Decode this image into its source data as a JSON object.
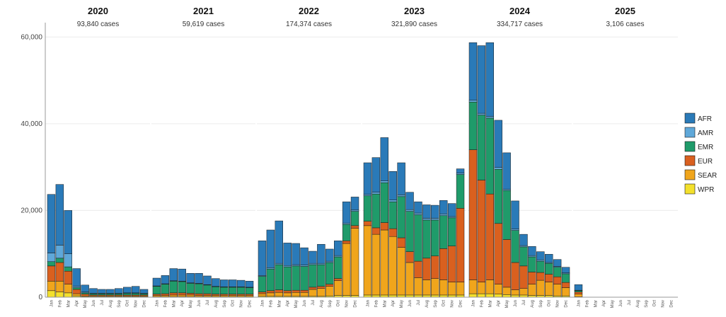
{
  "chart_data": {
    "type": "bar",
    "stacked": true,
    "ylim": [
      0,
      62000
    ],
    "yticks": [
      0,
      20000,
      40000,
      60000
    ],
    "ytick_labels": [
      "0",
      "20,000",
      "40,000",
      "60,000"
    ],
    "grid": true,
    "legend_position": "right",
    "series_colors": {
      "AFR": "#2a7ab8",
      "AMR": "#5fa8d9",
      "EMR": "#1f9b6a",
      "EUR": "#d9601f",
      "SEAR": "#f0a51c",
      "WPR": "#f3e02c"
    },
    "series_order": [
      "WPR",
      "SEAR",
      "EUR",
      "EMR",
      "AMR",
      "AFR"
    ],
    "legend": [
      "AFR",
      "AMR",
      "EMR",
      "EUR",
      "SEAR",
      "WPR"
    ],
    "years": [
      {
        "year": "2020",
        "label": "93,840 cases",
        "months": [
          "Jan",
          "Feb",
          "Mar",
          "Apr",
          "May",
          "Jun",
          "Jul",
          "Aug",
          "Sep",
          "Oct",
          "Nov",
          "Dec"
        ],
        "bars": [
          {
            "WPR": 1500,
            "SEAR": 2200,
            "EUR": 3500,
            "EMR": 1000,
            "AMR": 2000,
            "AFR": 13500
          },
          {
            "WPR": 1200,
            "SEAR": 2500,
            "EUR": 4300,
            "EMR": 1000,
            "AMR": 3000,
            "AFR": 14000
          },
          {
            "WPR": 1000,
            "SEAR": 2000,
            "EUR": 3000,
            "EMR": 1000,
            "AMR": 3000,
            "AFR": 10000
          },
          {
            "WPR": 300,
            "SEAR": 500,
            "EUR": 1000,
            "EMR": 400,
            "AMR": 300,
            "AFR": 4100
          },
          {
            "WPR": 100,
            "SEAR": 200,
            "EUR": 400,
            "EMR": 300,
            "AMR": 200,
            "AFR": 1600
          },
          {
            "WPR": 100,
            "SEAR": 200,
            "EUR": 200,
            "EMR": 300,
            "AMR": 100,
            "AFR": 1100
          },
          {
            "WPR": 100,
            "SEAR": 200,
            "EUR": 200,
            "EMR": 300,
            "AMR": 100,
            "AFR": 900
          },
          {
            "WPR": 100,
            "SEAR": 200,
            "EUR": 200,
            "EMR": 300,
            "AMR": 100,
            "AFR": 900
          },
          {
            "WPR": 100,
            "SEAR": 200,
            "EUR": 200,
            "EMR": 300,
            "AMR": 100,
            "AFR": 1100
          },
          {
            "WPR": 100,
            "SEAR": 200,
            "EUR": 200,
            "EMR": 400,
            "AMR": 100,
            "AFR": 1300
          },
          {
            "WPR": 100,
            "SEAR": 200,
            "EUR": 200,
            "EMR": 400,
            "AMR": 100,
            "AFR": 1500
          },
          {
            "WPR": 100,
            "SEAR": 200,
            "EUR": 200,
            "EMR": 300,
            "AMR": 100,
            "AFR": 900
          }
        ]
      },
      {
        "year": "2021",
        "label": "59,619 cases",
        "months": [
          "Jan",
          "Feb",
          "Mar",
          "Apr",
          "May",
          "Jun",
          "Jul",
          "Aug",
          "Sep",
          "Oct",
          "Nov",
          "Dec"
        ],
        "bars": [
          {
            "WPR": 100,
            "SEAR": 300,
            "EUR": 300,
            "EMR": 1800,
            "AMR": 100,
            "AFR": 1800
          },
          {
            "WPR": 100,
            "SEAR": 300,
            "EUR": 400,
            "EMR": 2200,
            "AMR": 100,
            "AFR": 1900
          },
          {
            "WPR": 100,
            "SEAR": 400,
            "EUR": 500,
            "EMR": 2700,
            "AMR": 100,
            "AFR": 2800
          },
          {
            "WPR": 100,
            "SEAR": 400,
            "EUR": 500,
            "EMR": 2600,
            "AMR": 100,
            "AFR": 2800
          },
          {
            "WPR": 100,
            "SEAR": 400,
            "EUR": 400,
            "EMR": 2300,
            "AMR": 100,
            "AFR": 2200
          },
          {
            "WPR": 100,
            "SEAR": 300,
            "EUR": 400,
            "EMR": 2300,
            "AMR": 100,
            "AFR": 2300
          },
          {
            "WPR": 100,
            "SEAR": 300,
            "EUR": 400,
            "EMR": 2000,
            "AMR": 100,
            "AFR": 2000
          },
          {
            "WPR": 100,
            "SEAR": 300,
            "EUR": 300,
            "EMR": 1700,
            "AMR": 100,
            "AFR": 1800
          },
          {
            "WPR": 100,
            "SEAR": 300,
            "EUR": 300,
            "EMR": 1600,
            "AMR": 100,
            "AFR": 1600
          },
          {
            "WPR": 100,
            "SEAR": 300,
            "EUR": 300,
            "EMR": 1600,
            "AMR": 100,
            "AFR": 1600
          },
          {
            "WPR": 100,
            "SEAR": 300,
            "EUR": 300,
            "EMR": 1600,
            "AMR": 100,
            "AFR": 1500
          },
          {
            "WPR": 100,
            "SEAR": 300,
            "EUR": 300,
            "EMR": 1500,
            "AMR": 100,
            "AFR": 1400
          }
        ]
      },
      {
        "year": "2022",
        "label": "174,374 cases",
        "months": [
          "Jan",
          "Feb",
          "Mar",
          "Apr",
          "May",
          "Jun",
          "Jul",
          "Aug",
          "Sep",
          "Oct",
          "Nov",
          "Dec"
        ],
        "bars": [
          {
            "WPR": 200,
            "SEAR": 600,
            "EUR": 400,
            "EMR": 3600,
            "AMR": 200,
            "AFR": 8000
          },
          {
            "WPR": 200,
            "SEAR": 800,
            "EUR": 500,
            "EMR": 5000,
            "AMR": 300,
            "AFR": 8700
          },
          {
            "WPR": 200,
            "SEAR": 900,
            "EUR": 600,
            "EMR": 5800,
            "AMR": 300,
            "AFR": 9800
          },
          {
            "WPR": 200,
            "SEAR": 800,
            "EUR": 500,
            "EMR": 5500,
            "AMR": 300,
            "AFR": 5200
          },
          {
            "WPR": 200,
            "SEAR": 900,
            "EUR": 500,
            "EMR": 5600,
            "AMR": 300,
            "AFR": 4900
          },
          {
            "WPR": 200,
            "SEAR": 900,
            "EUR": 500,
            "EMR": 5500,
            "AMR": 300,
            "AFR": 4000
          },
          {
            "WPR": 200,
            "SEAR": 1600,
            "EUR": 500,
            "EMR": 5200,
            "AMR": 300,
            "AFR": 2800
          },
          {
            "WPR": 200,
            "SEAR": 1800,
            "EUR": 500,
            "EMR": 5000,
            "AMR": 300,
            "AFR": 4400
          },
          {
            "WPR": 300,
            "SEAR": 2200,
            "EUR": 500,
            "EMR": 5000,
            "AMR": 300,
            "AFR": 2800
          },
          {
            "WPR": 400,
            "SEAR": 3400,
            "EUR": 500,
            "EMR": 5000,
            "AMR": 300,
            "AFR": 3400
          },
          {
            "WPR": 400,
            "SEAR": 12000,
            "EUR": 600,
            "EMR": 3800,
            "AMR": 300,
            "AFR": 4900
          },
          {
            "WPR": 400,
            "SEAR": 15500,
            "EUR": 600,
            "EMR": 3300,
            "AMR": 300,
            "AFR": 3000
          }
        ]
      },
      {
        "year": "2023",
        "label": "321,890 cases",
        "months": [
          "Jan",
          "Feb",
          "Mar",
          "Apr",
          "May",
          "Jun",
          "Jul",
          "Aug",
          "Sep",
          "Oct",
          "Nov",
          "Dec"
        ],
        "bars": [
          {
            "WPR": 500,
            "SEAR": 16000,
            "EUR": 1000,
            "EMR": 5900,
            "AMR": 300,
            "AFR": 7300
          },
          {
            "WPR": 500,
            "SEAR": 14000,
            "EUR": 1500,
            "EMR": 7800,
            "AMR": 400,
            "AFR": 8000
          },
          {
            "WPR": 500,
            "SEAR": 15000,
            "EUR": 1700,
            "EMR": 9200,
            "AMR": 400,
            "AFR": 10000
          },
          {
            "WPR": 500,
            "SEAR": 13500,
            "EUR": 1800,
            "EMR": 6200,
            "AMR": 400,
            "AFR": 6600
          },
          {
            "WPR": 500,
            "SEAR": 11000,
            "EUR": 2200,
            "EMR": 9500,
            "AMR": 400,
            "AFR": 7400
          },
          {
            "WPR": 500,
            "SEAR": 7500,
            "EUR": 2500,
            "EMR": 9300,
            "AMR": 400,
            "AFR": 4000
          },
          {
            "WPR": 500,
            "SEAR": 4000,
            "EUR": 3800,
            "EMR": 10700,
            "AMR": 400,
            "AFR": 2600
          },
          {
            "WPR": 500,
            "SEAR": 3500,
            "EUR": 5000,
            "EMR": 8800,
            "AMR": 400,
            "AFR": 3100
          },
          {
            "WPR": 500,
            "SEAR": 3800,
            "EUR": 5200,
            "EMR": 8300,
            "AMR": 400,
            "AFR": 3000
          },
          {
            "WPR": 500,
            "SEAR": 3500,
            "EUR": 7200,
            "EMR": 7600,
            "AMR": 400,
            "AFR": 3100
          },
          {
            "WPR": 500,
            "SEAR": 3000,
            "EUR": 8300,
            "EMR": 6500,
            "AMR": 300,
            "AFR": 3000
          },
          {
            "WPR": 500,
            "SEAR": 3000,
            "EUR": 17000,
            "EMR": 7800,
            "AMR": 300,
            "AFR": 1000
          }
        ]
      },
      {
        "year": "2024",
        "label": "334,717 cases",
        "months": [
          "Jan",
          "Feb",
          "Mar",
          "Apr",
          "May",
          "Jun",
          "Jul",
          "Aug",
          "Sep",
          "Oct",
          "Nov",
          "Dec"
        ],
        "bars": [
          {
            "WPR": 800,
            "SEAR": 3200,
            "EUR": 30000,
            "EMR": 11000,
            "AMR": 400,
            "AFR": 13300
          },
          {
            "WPR": 800,
            "SEAR": 2700,
            "EUR": 23500,
            "EMR": 15000,
            "AMR": 400,
            "AFR": 15600
          },
          {
            "WPR": 800,
            "SEAR": 3200,
            "EUR": 19800,
            "EMR": 17500,
            "AMR": 400,
            "AFR": 17000
          },
          {
            "WPR": 700,
            "SEAR": 2300,
            "EUR": 14000,
            "EMR": 12500,
            "AMR": 400,
            "AFR": 10900
          },
          {
            "WPR": 600,
            "SEAR": 1700,
            "EUR": 11000,
            "EMR": 11300,
            "AMR": 300,
            "AFR": 8400
          },
          {
            "WPR": 500,
            "SEAR": 1200,
            "EUR": 6300,
            "EMR": 7400,
            "AMR": 300,
            "AFR": 6500
          },
          {
            "WPR": 500,
            "SEAR": 1500,
            "EUR": 5200,
            "EMR": 4400,
            "AMR": 300,
            "AFR": 2600
          },
          {
            "WPR": 400,
            "SEAR": 2600,
            "EUR": 2800,
            "EMR": 3500,
            "AMR": 300,
            "AFR": 2100
          },
          {
            "WPR": 400,
            "SEAR": 3500,
            "EUR": 1800,
            "EMR": 2600,
            "AMR": 300,
            "AFR": 1900
          },
          {
            "WPR": 400,
            "SEAR": 3100,
            "EUR": 1800,
            "EMR": 2500,
            "AMR": 200,
            "AFR": 1900
          },
          {
            "WPR": 300,
            "SEAR": 2700,
            "EUR": 1700,
            "EMR": 2200,
            "AMR": 200,
            "AFR": 1600
          },
          {
            "WPR": 300,
            "SEAR": 1900,
            "EUR": 1200,
            "EMR": 2000,
            "AMR": 200,
            "AFR": 1300
          }
        ]
      },
      {
        "year": "2025",
        "label": "3,106 cases",
        "months": [
          "Jan",
          "Feb",
          "Mar",
          "Apr",
          "May",
          "Jun",
          "Jul",
          "Aug",
          "Sep",
          "Oct",
          "Nov",
          "Dec"
        ],
        "bars": [
          {
            "WPR": 100,
            "SEAR": 600,
            "EUR": 500,
            "EMR": 300,
            "AMR": 100,
            "AFR": 1300
          },
          {
            "WPR": 0,
            "SEAR": 0,
            "EUR": 0,
            "EMR": 0,
            "AMR": 0,
            "AFR": 0
          },
          {
            "WPR": 0,
            "SEAR": 0,
            "EUR": 0,
            "EMR": 0,
            "AMR": 0,
            "AFR": 0
          },
          {
            "WPR": 0,
            "SEAR": 0,
            "EUR": 0,
            "EMR": 0,
            "AMR": 0,
            "AFR": 0
          },
          {
            "WPR": 0,
            "SEAR": 0,
            "EUR": 0,
            "EMR": 0,
            "AMR": 0,
            "AFR": 0
          },
          {
            "WPR": 0,
            "SEAR": 0,
            "EUR": 0,
            "EMR": 0,
            "AMR": 0,
            "AFR": 0
          },
          {
            "WPR": 0,
            "SEAR": 0,
            "EUR": 0,
            "EMR": 0,
            "AMR": 0,
            "AFR": 0
          },
          {
            "WPR": 0,
            "SEAR": 0,
            "EUR": 0,
            "EMR": 0,
            "AMR": 0,
            "AFR": 0
          },
          {
            "WPR": 0,
            "SEAR": 0,
            "EUR": 0,
            "EMR": 0,
            "AMR": 0,
            "AFR": 0
          },
          {
            "WPR": 0,
            "SEAR": 0,
            "EUR": 0,
            "EMR": 0,
            "AMR": 0,
            "AFR": 0
          },
          {
            "WPR": 0,
            "SEAR": 0,
            "EUR": 0,
            "EMR": 0,
            "AMR": 0,
            "AFR": 0
          },
          {
            "WPR": 0,
            "SEAR": 0,
            "EUR": 0,
            "EMR": 0,
            "AMR": 0,
            "AFR": 0
          }
        ]
      }
    ]
  }
}
